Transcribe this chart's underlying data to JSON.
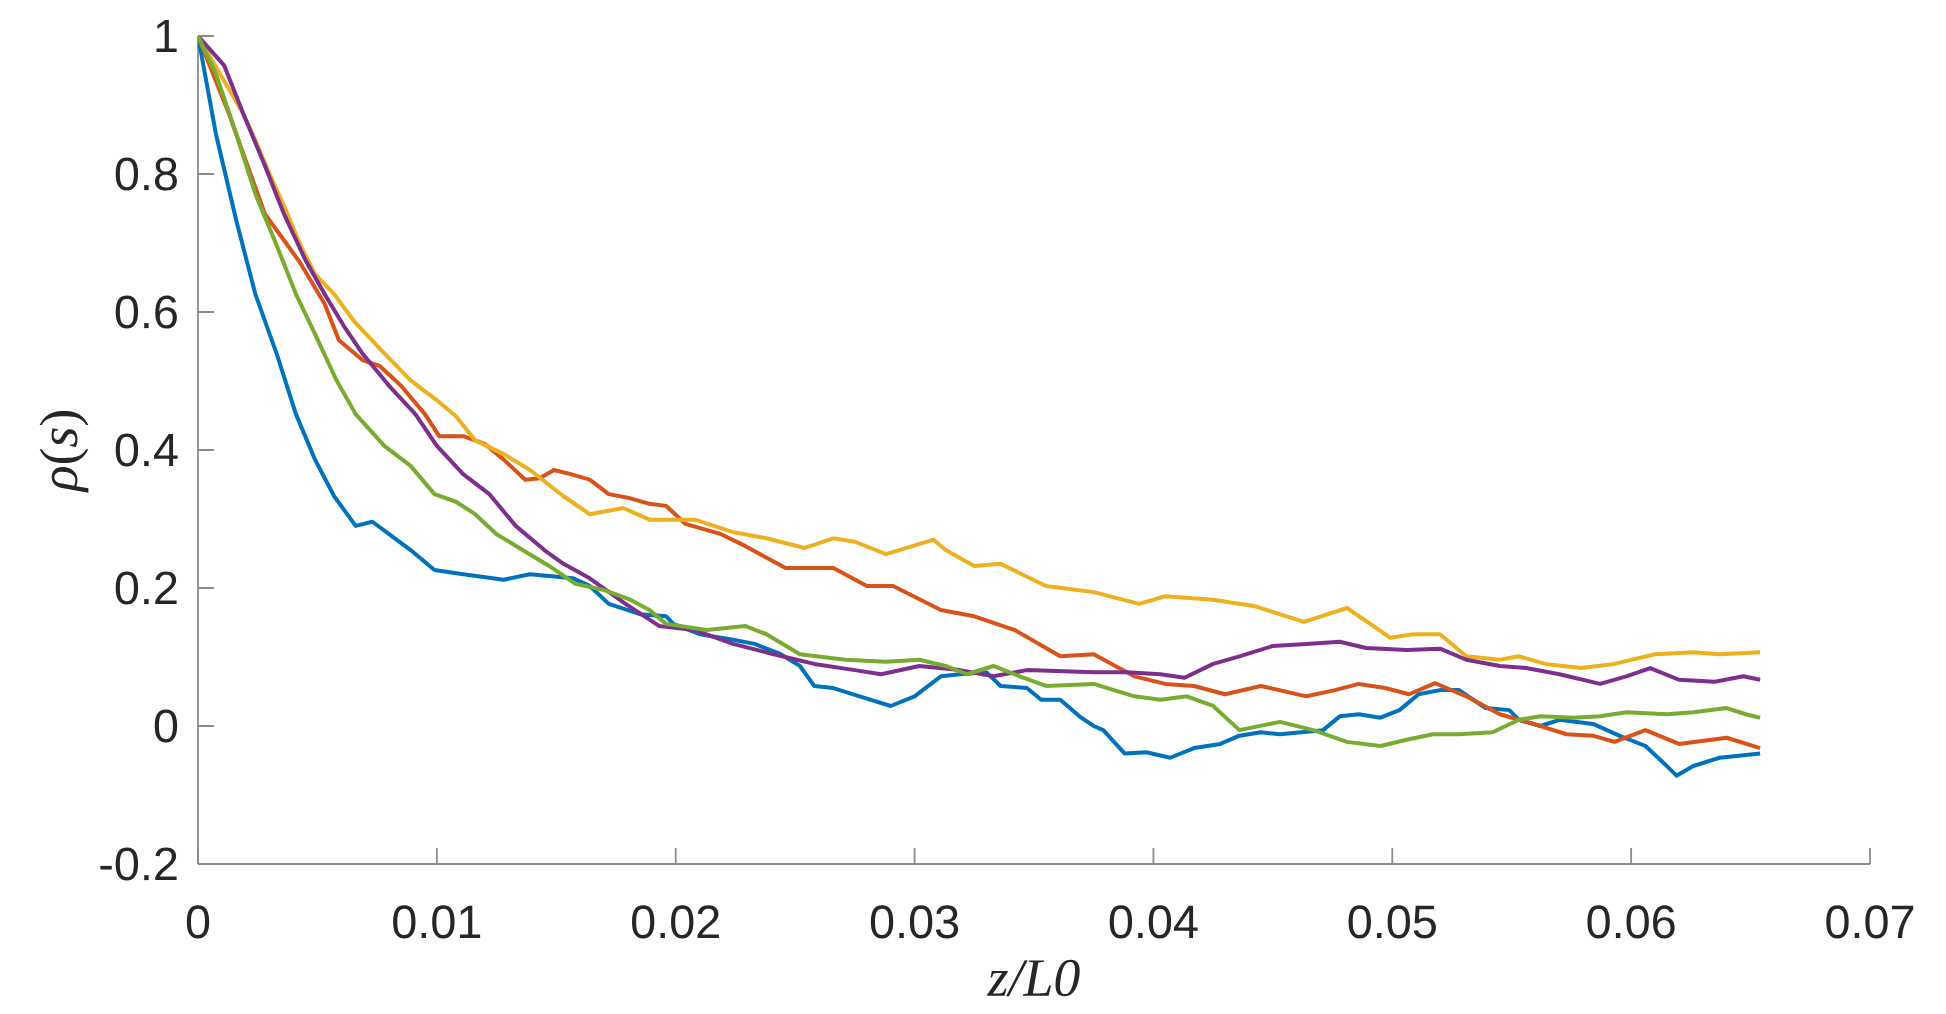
{
  "chart_data": {
    "type": "line",
    "xlabel": "z/L0",
    "ylabel": "*ρ*(*s*)",
    "xlim": [
      0,
      0.07
    ],
    "ylim": [
      -0.2,
      1
    ],
    "xticks": [
      0,
      0.01,
      0.02,
      0.03,
      0.04,
      0.05,
      0.06,
      0.07
    ],
    "yticks": [
      -0.2,
      0,
      0.2,
      0.4,
      0.6,
      0.8,
      1
    ],
    "series": [
      {
        "color": "#0072bd",
        "x": [
          0,
          0.00075,
          0.0016,
          0.0024,
          0.0033,
          0.0041,
          0.0049,
          0.0057,
          0.0066,
          0.0073,
          0.008,
          0.0089,
          0.0099,
          0.0111,
          0.0128,
          0.0139,
          0.0157,
          0.0164,
          0.0172,
          0.0185,
          0.0196,
          0.0199,
          0.021,
          0.0224,
          0.0233,
          0.0244,
          0.0252,
          0.0258,
          0.0266,
          0.0277,
          0.029,
          0.03,
          0.0311,
          0.0319,
          0.033,
          0.0336,
          0.0347,
          0.0353,
          0.0361,
          0.0369,
          0.0375,
          0.0379,
          0.0388,
          0.0397,
          0.0407,
          0.0417,
          0.0428,
          0.0436,
          0.0445,
          0.0453,
          0.0471,
          0.0478,
          0.0486,
          0.0495,
          0.0503,
          0.0511,
          0.052,
          0.0528,
          0.0539,
          0.0549,
          0.0553,
          0.0562,
          0.057,
          0.0584,
          0.0595,
          0.0606,
          0.0614,
          0.0619,
          0.0626,
          0.0637,
          0.0654
        ],
        "values": [
          1,
          0.858,
          0.733,
          0.626,
          0.539,
          0.452,
          0.386,
          0.333,
          0.29,
          0.296,
          0.278,
          0.255,
          0.226,
          0.22,
          0.212,
          0.22,
          0.214,
          0.203,
          0.177,
          0.162,
          0.159,
          0.148,
          0.133,
          0.125,
          0.119,
          0.104,
          0.087,
          0.058,
          0.055,
          0.043,
          0.029,
          0.043,
          0.072,
          0.075,
          0.078,
          0.058,
          0.055,
          0.038,
          0.038,
          0.014,
          0,
          -0.006,
          -0.04,
          -0.038,
          -0.046,
          -0.032,
          -0.026,
          -0.014,
          -0.009,
          -0.012,
          -0.006,
          0.014,
          0.017,
          0.012,
          0.023,
          0.046,
          0.052,
          0.052,
          0.026,
          0.023,
          0.009,
          0,
          0.009,
          0.003,
          -0.014,
          -0.029,
          -0.055,
          -0.072,
          -0.058,
          -0.046,
          -0.04
        ]
      },
      {
        "color": "#d95319",
        "x": [
          0,
          0.0013,
          0.0022,
          0.0028,
          0.0036,
          0.0043,
          0.0053,
          0.0059,
          0.0069,
          0.0076,
          0.0085,
          0.0095,
          0.0101,
          0.0111,
          0.012,
          0.0128,
          0.0137,
          0.0143,
          0.0149,
          0.0156,
          0.0164,
          0.0172,
          0.0181,
          0.0189,
          0.0196,
          0.0204,
          0.0219,
          0.0229,
          0.0246,
          0.0266,
          0.028,
          0.0291,
          0.0311,
          0.0325,
          0.0342,
          0.0361,
          0.0375,
          0.0392,
          0.0405,
          0.0417,
          0.043,
          0.0445,
          0.0464,
          0.0476,
          0.0486,
          0.0497,
          0.0507,
          0.0518,
          0.0531,
          0.0545,
          0.0559,
          0.0573,
          0.0584,
          0.0593,
          0.0606,
          0.062,
          0.064,
          0.0654
        ],
        "values": [
          1,
          0.887,
          0.8,
          0.742,
          0.704,
          0.67,
          0.612,
          0.559,
          0.53,
          0.522,
          0.493,
          0.452,
          0.42,
          0.42,
          0.409,
          0.386,
          0.357,
          0.359,
          0.371,
          0.365,
          0.357,
          0.336,
          0.33,
          0.322,
          0.319,
          0.293,
          0.278,
          0.261,
          0.229,
          0.229,
          0.203,
          0.203,
          0.168,
          0.159,
          0.139,
          0.101,
          0.104,
          0.072,
          0.061,
          0.058,
          0.046,
          0.058,
          0.043,
          0.052,
          0.061,
          0.055,
          0.046,
          0.062,
          0.043,
          0.017,
          0.003,
          -0.012,
          -0.014,
          -0.023,
          -0.006,
          -0.026,
          -0.017,
          -0.032
        ]
      },
      {
        "color": "#edb120",
        "x": [
          0,
          0.0019,
          0.0024,
          0.003,
          0.0036,
          0.0043,
          0.0049,
          0.0057,
          0.0065,
          0.0075,
          0.0089,
          0.01,
          0.0108,
          0.0116,
          0.0128,
          0.0139,
          0.0153,
          0.0164,
          0.0178,
          0.0189,
          0.0208,
          0.0224,
          0.0238,
          0.0254,
          0.0266,
          0.0275,
          0.0288,
          0.0308,
          0.0313,
          0.0325,
          0.0336,
          0.0355,
          0.0375,
          0.0394,
          0.0405,
          0.0425,
          0.0442,
          0.0463,
          0.0481,
          0.0492,
          0.0499,
          0.0509,
          0.052,
          0.0531,
          0.0545,
          0.0553,
          0.0564,
          0.0579,
          0.0593,
          0.061,
          0.0626,
          0.0637,
          0.0654
        ],
        "values": [
          1,
          0.887,
          0.849,
          0.8,
          0.754,
          0.696,
          0.655,
          0.626,
          0.588,
          0.551,
          0.501,
          0.472,
          0.449,
          0.414,
          0.394,
          0.371,
          0.333,
          0.307,
          0.316,
          0.299,
          0.299,
          0.281,
          0.272,
          0.258,
          0.272,
          0.267,
          0.249,
          0.27,
          0.255,
          0.232,
          0.235,
          0.203,
          0.194,
          0.177,
          0.188,
          0.183,
          0.174,
          0.151,
          0.171,
          0.145,
          0.128,
          0.133,
          0.133,
          0.101,
          0.096,
          0.101,
          0.09,
          0.084,
          0.09,
          0.104,
          0.107,
          0.104,
          0.107
        ]
      },
      {
        "color": "#7e2f8e",
        "x": [
          0,
          0.0011,
          0.0019,
          0.0028,
          0.0036,
          0.0045,
          0.0053,
          0.0061,
          0.0069,
          0.008,
          0.0091,
          0.01,
          0.0111,
          0.0122,
          0.0133,
          0.0145,
          0.0153,
          0.0164,
          0.0179,
          0.0193,
          0.0208,
          0.0224,
          0.0241,
          0.0258,
          0.0275,
          0.0286,
          0.0302,
          0.0319,
          0.0333,
          0.0347,
          0.0375,
          0.0389,
          0.0403,
          0.0413,
          0.0425,
          0.0436,
          0.045,
          0.0464,
          0.0478,
          0.0489,
          0.0506,
          0.052,
          0.0531,
          0.0545,
          0.0556,
          0.057,
          0.0587,
          0.0598,
          0.0608,
          0.062,
          0.0635,
          0.0647,
          0.0654
        ],
        "values": [
          1,
          0.957,
          0.887,
          0.812,
          0.742,
          0.675,
          0.626,
          0.58,
          0.539,
          0.493,
          0.452,
          0.406,
          0.365,
          0.336,
          0.29,
          0.255,
          0.235,
          0.214,
          0.177,
          0.145,
          0.139,
          0.119,
          0.104,
          0.09,
          0.081,
          0.075,
          0.087,
          0.081,
          0.072,
          0.081,
          0.078,
          0.078,
          0.075,
          0.07,
          0.09,
          0.101,
          0.116,
          0.119,
          0.122,
          0.113,
          0.11,
          0.112,
          0.096,
          0.087,
          0.084,
          0.075,
          0.061,
          0.072,
          0.084,
          0.067,
          0.064,
          0.072,
          0.067
        ]
      },
      {
        "color": "#77ac30",
        "x": [
          0,
          0.00075,
          0.0016,
          0.0024,
          0.0033,
          0.0041,
          0.0049,
          0.0058,
          0.0066,
          0.0078,
          0.0089,
          0.0099,
          0.0108,
          0.0116,
          0.0125,
          0.0136,
          0.0147,
          0.0158,
          0.017,
          0.0181,
          0.0189,
          0.0196,
          0.0213,
          0.0229,
          0.0238,
          0.0252,
          0.0271,
          0.0288,
          0.0302,
          0.0313,
          0.0322,
          0.0333,
          0.0344,
          0.0355,
          0.0375,
          0.0392,
          0.0403,
          0.0414,
          0.0425,
          0.0436,
          0.0453,
          0.0467,
          0.0481,
          0.0495,
          0.0506,
          0.0517,
          0.0528,
          0.0542,
          0.0553,
          0.0562,
          0.0576,
          0.0587,
          0.0598,
          0.0615,
          0.0626,
          0.064,
          0.0648,
          0.0654
        ],
        "values": [
          1,
          0.945,
          0.858,
          0.771,
          0.696,
          0.626,
          0.568,
          0.501,
          0.452,
          0.406,
          0.377,
          0.336,
          0.325,
          0.307,
          0.278,
          0.255,
          0.232,
          0.206,
          0.197,
          0.183,
          0.168,
          0.148,
          0.139,
          0.145,
          0.133,
          0.104,
          0.096,
          0.093,
          0.096,
          0.087,
          0.075,
          0.087,
          0.072,
          0.058,
          0.061,
          0.043,
          0.038,
          0.043,
          0.029,
          -0.006,
          0.006,
          -0.006,
          -0.023,
          -0.029,
          -0.02,
          -0.012,
          -0.012,
          -0.009,
          0.009,
          0.014,
          0.012,
          0.014,
          0.02,
          0.017,
          0.02,
          0.026,
          0.017,
          0.012
        ]
      }
    ]
  }
}
